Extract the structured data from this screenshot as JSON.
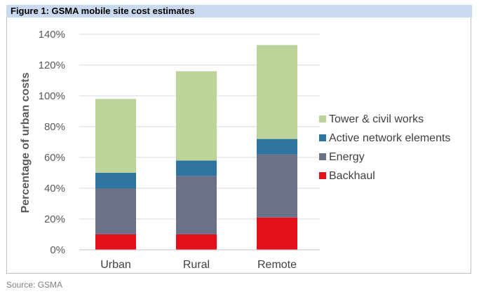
{
  "figure": {
    "title": "Figure 1: GSMA mobile site cost estimates",
    "source": "Source: GSMA"
  },
  "colors": {
    "header_bg": "#c9daf0",
    "Backhaul": "#e3101a",
    "Energy": "#6b7188",
    "Active network elements": "#2f74a0",
    "Tower & civil works": "#bcd39a"
  },
  "chart_data": {
    "type": "bar",
    "stacked": true,
    "categories": [
      "Urban",
      "Rural",
      "Remote"
    ],
    "series": [
      {
        "name": "Backhaul",
        "values": [
          10,
          10,
          21
        ]
      },
      {
        "name": "Energy",
        "values": [
          30,
          38,
          41
        ]
      },
      {
        "name": "Active network elements",
        "values": [
          10,
          10,
          10
        ]
      },
      {
        "name": "Tower & civil works",
        "values": [
          48,
          58,
          61
        ]
      }
    ],
    "legend_order": [
      "Tower & civil works",
      "Active network elements",
      "Energy",
      "Backhaul"
    ],
    "ylabel": "Percentage of urban costs",
    "ylim": [
      0,
      140
    ],
    "yticks": [
      "0%",
      "20%",
      "40%",
      "60%",
      "80%",
      "100%",
      "120%",
      "140%"
    ],
    "grid": true,
    "legend_position": "right"
  }
}
